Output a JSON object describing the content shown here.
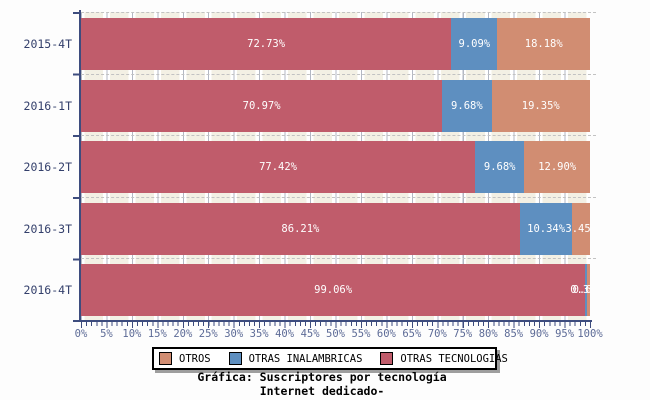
{
  "chart_data": {
    "type": "bar",
    "orientation": "horizontal-stacked",
    "title": "Gráfica: Suscriptores por tecnología",
    "subtitle": "Internet dedicado-",
    "categories": [
      "2015-4T",
      "2016-1T",
      "2016-2T",
      "2016-3T",
      "2016-4T"
    ],
    "series": [
      {
        "name": "OTRAS TECNOLOGIAS",
        "color": "#c05c6b",
        "values": [
          72.73,
          70.97,
          77.42,
          86.21,
          99.06
        ],
        "labels": [
          "72.73%",
          "70.97%",
          "77.42%",
          "86.21%",
          "99.06%"
        ]
      },
      {
        "name": "OTRAS INALAMBRICAS",
        "color": "#5e8fc0",
        "values": [
          9.09,
          9.68,
          9.68,
          10.34,
          0.31
        ],
        "labels": [
          "9.09%",
          "9.68%",
          "9.68%",
          "10.34%",
          "0.31%"
        ]
      },
      {
        "name": "OTROS",
        "color": "#d18d72",
        "values": [
          18.18,
          19.35,
          12.9,
          3.45,
          0.63
        ],
        "labels": [
          "18.18%",
          "19.35%",
          "12.90%",
          "3.45%",
          "0.63%"
        ]
      }
    ],
    "xlim": [
      0,
      100
    ],
    "x_ticks": [
      "0%",
      "5%",
      "10%",
      "15%",
      "20%",
      "25%",
      "30%",
      "35%",
      "40%",
      "45%",
      "50%",
      "55%",
      "60%",
      "65%",
      "70%",
      "75%",
      "80%",
      "85%",
      "90%",
      "95%",
      "100%"
    ],
    "grid": "dashed",
    "legend": {
      "position": "bottom",
      "items": [
        {
          "label": "OTROS",
          "color": "#d18d72"
        },
        {
          "label": "OTRAS INALAMBRICAS",
          "color": "#5e8fc0"
        },
        {
          "label": "OTRAS TECNOLOGIAS",
          "color": "#c05c6b"
        }
      ]
    },
    "style_colors": {
      "axis": "#3d4c7e",
      "category_label": "#333f6b",
      "tick_label": "#5c6a96",
      "bar_label": "#ffffff",
      "grid_dash": "#c2c2c2",
      "band": "#f3f0e4",
      "legend_border": "#000000",
      "legend_shadow": "#9e9e9e"
    }
  }
}
